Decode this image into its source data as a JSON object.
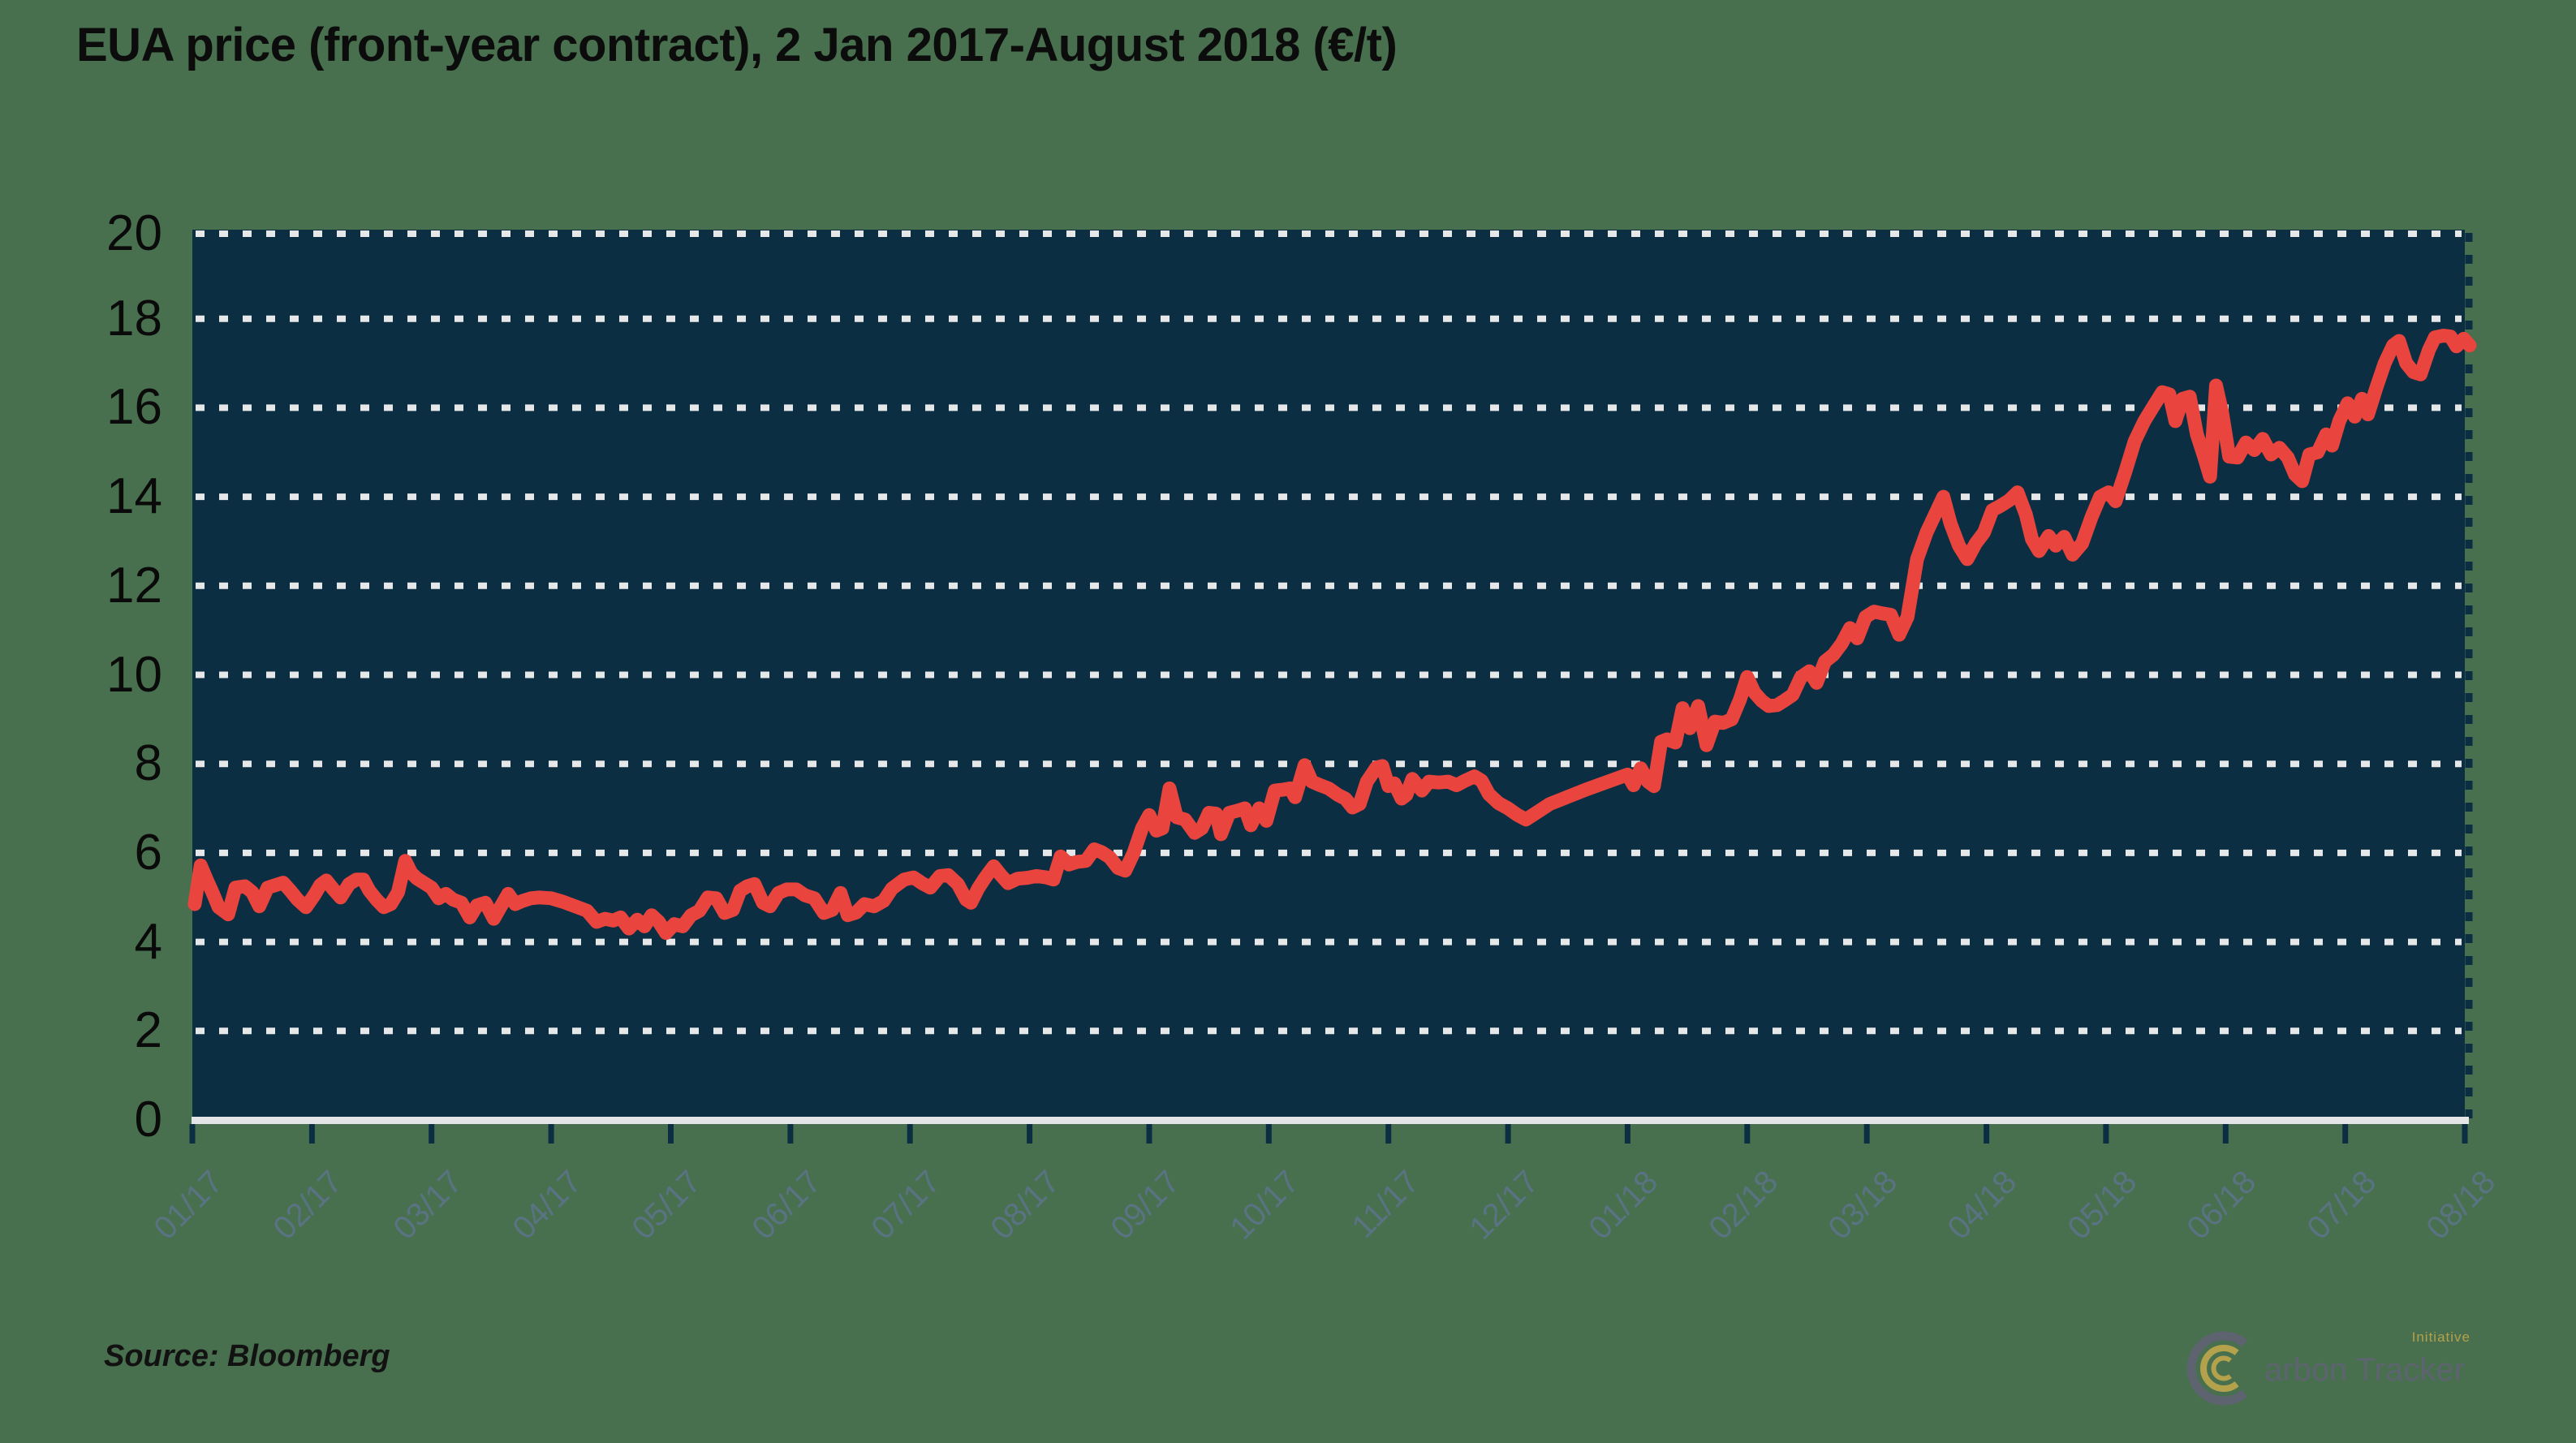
{
  "title": "EUA price (front-year contract), 2 Jan 2017-August 2018 (€/t)",
  "source": "Source: Bloomberg",
  "logo": {
    "name": "Carbon Tracker",
    "display_rest": "arbon Tracker",
    "initiative": "Initiative"
  },
  "colors": {
    "background": "#48704e",
    "plot_background": "#0c2e42",
    "line": "#e9453e",
    "gridline": "#e6e7e8",
    "axis_line": "#e4e5e6",
    "tick": "#0c2e42",
    "x_label": "#5a7382",
    "y_label": "#0a0a0a",
    "title": "#0c0c0c",
    "logo_gray": "#5d6470",
    "logo_gold": "#b3a14c"
  },
  "chart_data": {
    "type": "line",
    "title": "EUA price (front-year contract), 2 Jan 2017-August 2018 (€/t)",
    "xlabel": "",
    "ylabel": "",
    "ylim": [
      0,
      20
    ],
    "yticks": [
      0,
      2,
      4,
      6,
      8,
      10,
      12,
      14,
      16,
      18,
      20
    ],
    "xticklabels": [
      "01/17",
      "02/17",
      "03/17",
      "04/17",
      "05/17",
      "06/17",
      "07/17",
      "08/17",
      "09/17",
      "10/17",
      "11/17",
      "12/17",
      "01/18",
      "02/18",
      "03/18",
      "04/18",
      "05/18",
      "06/18",
      "07/18",
      "08/18"
    ],
    "grid": "horizontal-dotted",
    "legend": "none",
    "x_unit": "months since Jan 2017",
    "series": [
      {
        "name": "EUA price (€/t)",
        "color": "#e9453e",
        "points": [
          [
            0.02,
            4.85
          ],
          [
            0.07,
            5.72
          ],
          [
            0.12,
            5.4
          ],
          [
            0.17,
            5.1
          ],
          [
            0.22,
            4.78
          ],
          [
            0.3,
            4.62
          ],
          [
            0.36,
            5.22
          ],
          [
            0.44,
            5.25
          ],
          [
            0.5,
            5.12
          ],
          [
            0.56,
            4.8
          ],
          [
            0.63,
            5.22
          ],
          [
            0.7,
            5.28
          ],
          [
            0.76,
            5.33
          ],
          [
            0.82,
            5.15
          ],
          [
            0.88,
            4.95
          ],
          [
            0.95,
            4.78
          ],
          [
            1.02,
            5.05
          ],
          [
            1.07,
            5.28
          ],
          [
            1.12,
            5.38
          ],
          [
            1.18,
            5.18
          ],
          [
            1.24,
            5.0
          ],
          [
            1.31,
            5.3
          ],
          [
            1.37,
            5.4
          ],
          [
            1.43,
            5.4
          ],
          [
            1.48,
            5.15
          ],
          [
            1.54,
            4.95
          ],
          [
            1.6,
            4.78
          ],
          [
            1.66,
            4.85
          ],
          [
            1.72,
            5.12
          ],
          [
            1.78,
            5.82
          ],
          [
            1.83,
            5.55
          ],
          [
            1.88,
            5.42
          ],
          [
            1.94,
            5.32
          ],
          [
            2.0,
            5.22
          ],
          [
            2.06,
            4.98
          ],
          [
            2.12,
            5.08
          ],
          [
            2.18,
            4.95
          ],
          [
            2.25,
            4.88
          ],
          [
            2.32,
            4.55
          ],
          [
            2.38,
            4.82
          ],
          [
            2.45,
            4.88
          ],
          [
            2.52,
            4.52
          ],
          [
            2.58,
            4.8
          ],
          [
            2.64,
            5.08
          ],
          [
            2.7,
            4.85
          ],
          [
            2.76,
            4.92
          ],
          [
            2.83,
            4.98
          ],
          [
            2.9,
            5.0
          ],
          [
            3.0,
            4.98
          ],
          [
            3.1,
            4.9
          ],
          [
            3.2,
            4.8
          ],
          [
            3.3,
            4.7
          ],
          [
            3.38,
            4.45
          ],
          [
            3.45,
            4.52
          ],
          [
            3.52,
            4.48
          ],
          [
            3.58,
            4.55
          ],
          [
            3.65,
            4.3
          ],
          [
            3.72,
            4.5
          ],
          [
            3.78,
            4.35
          ],
          [
            3.84,
            4.6
          ],
          [
            3.9,
            4.45
          ],
          [
            3.96,
            4.2
          ],
          [
            4.03,
            4.4
          ],
          [
            4.1,
            4.35
          ],
          [
            4.17,
            4.6
          ],
          [
            4.24,
            4.7
          ],
          [
            4.31,
            5.0
          ],
          [
            4.38,
            4.98
          ],
          [
            4.45,
            4.65
          ],
          [
            4.52,
            4.72
          ],
          [
            4.58,
            5.15
          ],
          [
            4.64,
            5.25
          ],
          [
            4.7,
            5.3
          ],
          [
            4.77,
            4.88
          ],
          [
            4.83,
            4.8
          ],
          [
            4.9,
            5.1
          ],
          [
            4.97,
            5.18
          ],
          [
            5.05,
            5.18
          ],
          [
            5.12,
            5.05
          ],
          [
            5.2,
            4.98
          ],
          [
            5.28,
            4.65
          ],
          [
            5.35,
            4.72
          ],
          [
            5.42,
            5.1
          ],
          [
            5.48,
            4.6
          ],
          [
            5.55,
            4.66
          ],
          [
            5.62,
            4.85
          ],
          [
            5.7,
            4.8
          ],
          [
            5.78,
            4.92
          ],
          [
            5.85,
            5.2
          ],
          [
            5.95,
            5.4
          ],
          [
            6.03,
            5.45
          ],
          [
            6.1,
            5.32
          ],
          [
            6.17,
            5.22
          ],
          [
            6.25,
            5.48
          ],
          [
            6.32,
            5.5
          ],
          [
            6.4,
            5.3
          ],
          [
            6.47,
            4.95
          ],
          [
            6.51,
            4.88
          ],
          [
            6.57,
            5.2
          ],
          [
            6.63,
            5.45
          ],
          [
            6.7,
            5.7
          ],
          [
            6.76,
            5.5
          ],
          [
            6.82,
            5.32
          ],
          [
            6.9,
            5.42
          ],
          [
            6.98,
            5.44
          ],
          [
            7.06,
            5.48
          ],
          [
            7.14,
            5.45
          ],
          [
            7.2,
            5.4
          ],
          [
            7.26,
            5.92
          ],
          [
            7.33,
            5.74
          ],
          [
            7.4,
            5.8
          ],
          [
            7.47,
            5.82
          ],
          [
            7.54,
            6.08
          ],
          [
            7.6,
            6.02
          ],
          [
            7.67,
            5.9
          ],
          [
            7.74,
            5.66
          ],
          [
            7.8,
            5.6
          ],
          [
            7.87,
            6.0
          ],
          [
            7.94,
            6.55
          ],
          [
            8.0,
            6.85
          ],
          [
            8.06,
            6.5
          ],
          [
            8.11,
            6.55
          ],
          [
            8.17,
            7.45
          ],
          [
            8.23,
            6.8
          ],
          [
            8.3,
            6.75
          ],
          [
            8.38,
            6.45
          ],
          [
            8.44,
            6.55
          ],
          [
            8.5,
            6.9
          ],
          [
            8.56,
            6.88
          ],
          [
            8.6,
            6.42
          ],
          [
            8.67,
            6.9
          ],
          [
            8.74,
            6.95
          ],
          [
            8.8,
            7.0
          ],
          [
            8.85,
            6.62
          ],
          [
            8.92,
            7.0
          ],
          [
            8.98,
            6.72
          ],
          [
            9.05,
            7.4
          ],
          [
            9.12,
            7.42
          ],
          [
            9.18,
            7.45
          ],
          [
            9.22,
            7.25
          ],
          [
            9.3,
            7.97
          ],
          [
            9.36,
            7.6
          ],
          [
            9.43,
            7.52
          ],
          [
            9.5,
            7.45
          ],
          [
            9.58,
            7.3
          ],
          [
            9.64,
            7.22
          ],
          [
            9.7,
            7.02
          ],
          [
            9.76,
            7.1
          ],
          [
            9.82,
            7.6
          ],
          [
            9.9,
            7.92
          ],
          [
            9.95,
            7.95
          ],
          [
            10.0,
            7.5
          ],
          [
            10.05,
            7.56
          ],
          [
            10.11,
            7.22
          ],
          [
            10.15,
            7.3
          ],
          [
            10.2,
            7.66
          ],
          [
            10.28,
            7.4
          ],
          [
            10.34,
            7.6
          ],
          [
            10.42,
            7.58
          ],
          [
            10.5,
            7.6
          ],
          [
            10.57,
            7.52
          ],
          [
            10.64,
            7.62
          ],
          [
            10.72,
            7.72
          ],
          [
            10.78,
            7.62
          ],
          [
            10.84,
            7.32
          ],
          [
            10.92,
            7.12
          ],
          [
            11.0,
            7.0
          ],
          [
            11.08,
            6.85
          ],
          [
            11.15,
            6.75
          ],
          [
            11.35,
            7.1
          ],
          [
            11.65,
            7.42
          ],
          [
            12.0,
            7.76
          ],
          [
            12.05,
            7.52
          ],
          [
            12.11,
            7.9
          ],
          [
            12.17,
            7.6
          ],
          [
            12.22,
            7.5
          ],
          [
            12.28,
            8.5
          ],
          [
            12.33,
            8.55
          ],
          [
            12.4,
            8.48
          ],
          [
            12.46,
            9.25
          ],
          [
            12.52,
            8.8
          ],
          [
            12.59,
            9.3
          ],
          [
            12.66,
            8.42
          ],
          [
            12.73,
            8.95
          ],
          [
            12.8,
            8.92
          ],
          [
            12.87,
            9.0
          ],
          [
            12.94,
            9.45
          ],
          [
            13.0,
            9.95
          ],
          [
            13.06,
            9.6
          ],
          [
            13.12,
            9.42
          ],
          [
            13.18,
            9.3
          ],
          [
            13.25,
            9.32
          ],
          [
            13.31,
            9.42
          ],
          [
            13.38,
            9.55
          ],
          [
            13.45,
            9.95
          ],
          [
            13.52,
            10.08
          ],
          [
            13.58,
            9.82
          ],
          [
            13.65,
            10.3
          ],
          [
            13.72,
            10.45
          ],
          [
            13.79,
            10.7
          ],
          [
            13.86,
            11.05
          ],
          [
            13.92,
            10.82
          ],
          [
            13.99,
            11.3
          ],
          [
            14.06,
            11.42
          ],
          [
            14.13,
            11.38
          ],
          [
            14.2,
            11.35
          ],
          [
            14.27,
            10.9
          ],
          [
            14.34,
            11.3
          ],
          [
            14.42,
            12.6
          ],
          [
            14.5,
            13.2
          ],
          [
            14.57,
            13.6
          ],
          [
            14.64,
            14.0
          ],
          [
            14.7,
            13.4
          ],
          [
            14.77,
            12.9
          ],
          [
            14.84,
            12.6
          ],
          [
            14.91,
            12.95
          ],
          [
            14.98,
            13.2
          ],
          [
            15.05,
            13.7
          ],
          [
            15.12,
            13.8
          ],
          [
            15.19,
            13.92
          ],
          [
            15.26,
            14.1
          ],
          [
            15.33,
            13.6
          ],
          [
            15.38,
            13.05
          ],
          [
            15.44,
            12.78
          ],
          [
            15.52,
            13.12
          ],
          [
            15.58,
            12.9
          ],
          [
            15.65,
            13.1
          ],
          [
            15.72,
            12.7
          ],
          [
            15.8,
            12.95
          ],
          [
            15.88,
            13.55
          ],
          [
            15.95,
            14.0
          ],
          [
            16.02,
            14.1
          ],
          [
            16.08,
            13.9
          ],
          [
            16.16,
            14.55
          ],
          [
            16.24,
            15.25
          ],
          [
            16.32,
            15.7
          ],
          [
            16.4,
            16.05
          ],
          [
            16.47,
            16.35
          ],
          [
            16.53,
            16.3
          ],
          [
            16.58,
            15.7
          ],
          [
            16.64,
            16.2
          ],
          [
            16.7,
            16.25
          ],
          [
            16.76,
            15.4
          ],
          [
            16.82,
            14.9
          ],
          [
            16.87,
            14.45
          ],
          [
            16.92,
            16.5
          ],
          [
            16.97,
            15.9
          ],
          [
            17.03,
            14.9
          ],
          [
            17.1,
            14.88
          ],
          [
            17.17,
            15.22
          ],
          [
            17.24,
            15.05
          ],
          [
            17.31,
            15.3
          ],
          [
            17.38,
            14.95
          ],
          [
            17.45,
            15.1
          ],
          [
            17.52,
            14.88
          ],
          [
            17.58,
            14.5
          ],
          [
            17.64,
            14.35
          ],
          [
            17.7,
            14.95
          ],
          [
            17.77,
            15.0
          ],
          [
            17.84,
            15.4
          ],
          [
            17.89,
            15.15
          ],
          [
            17.95,
            15.7
          ],
          [
            18.02,
            16.1
          ],
          [
            18.08,
            15.8
          ],
          [
            18.14,
            16.2
          ],
          [
            18.19,
            15.85
          ],
          [
            18.26,
            16.45
          ],
          [
            18.33,
            17.0
          ],
          [
            18.4,
            17.4
          ],
          [
            18.45,
            17.5
          ],
          [
            18.51,
            17.0
          ],
          [
            18.57,
            16.8
          ],
          [
            18.63,
            16.75
          ],
          [
            18.7,
            17.3
          ],
          [
            18.75,
            17.58
          ],
          [
            18.82,
            17.62
          ],
          [
            18.88,
            17.6
          ],
          [
            18.93,
            17.38
          ],
          [
            18.99,
            17.55
          ],
          [
            19.04,
            17.4
          ]
        ]
      }
    ]
  }
}
